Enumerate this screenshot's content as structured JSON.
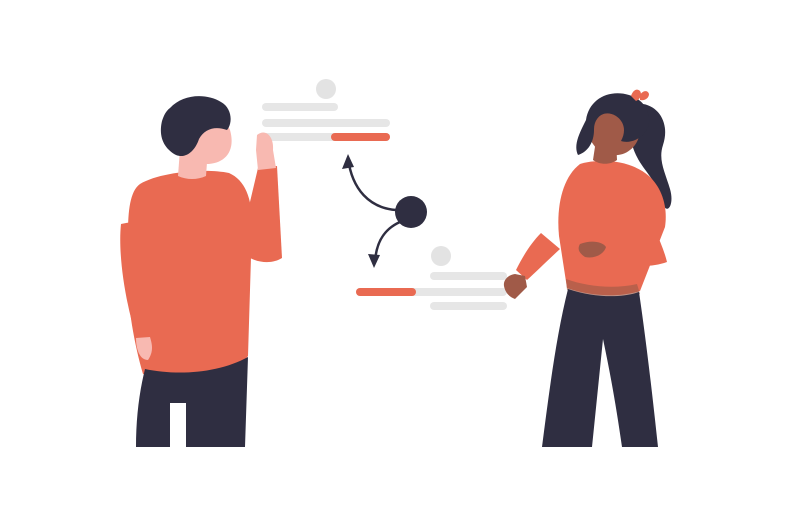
{
  "illustration": {
    "colors": {
      "background": "#ffffff",
      "accent": "#e96a52",
      "dark": "#2f2e41",
      "skin_light": "#f8b9b1",
      "skin_dark": "#a05a48",
      "placeholder": "#e6e6e6",
      "circle_light": "#e3e3e3"
    },
    "elements": {
      "left_person": "person-left",
      "right_person": "person-right",
      "hub_node": "hub-circle",
      "arrows": [
        "arrow-up",
        "arrow-down"
      ],
      "cards": [
        "top-card",
        "bottom-card"
      ]
    },
    "progress": {
      "top_card_fill": 0.46,
      "bottom_card_fill": 0.39
    }
  }
}
